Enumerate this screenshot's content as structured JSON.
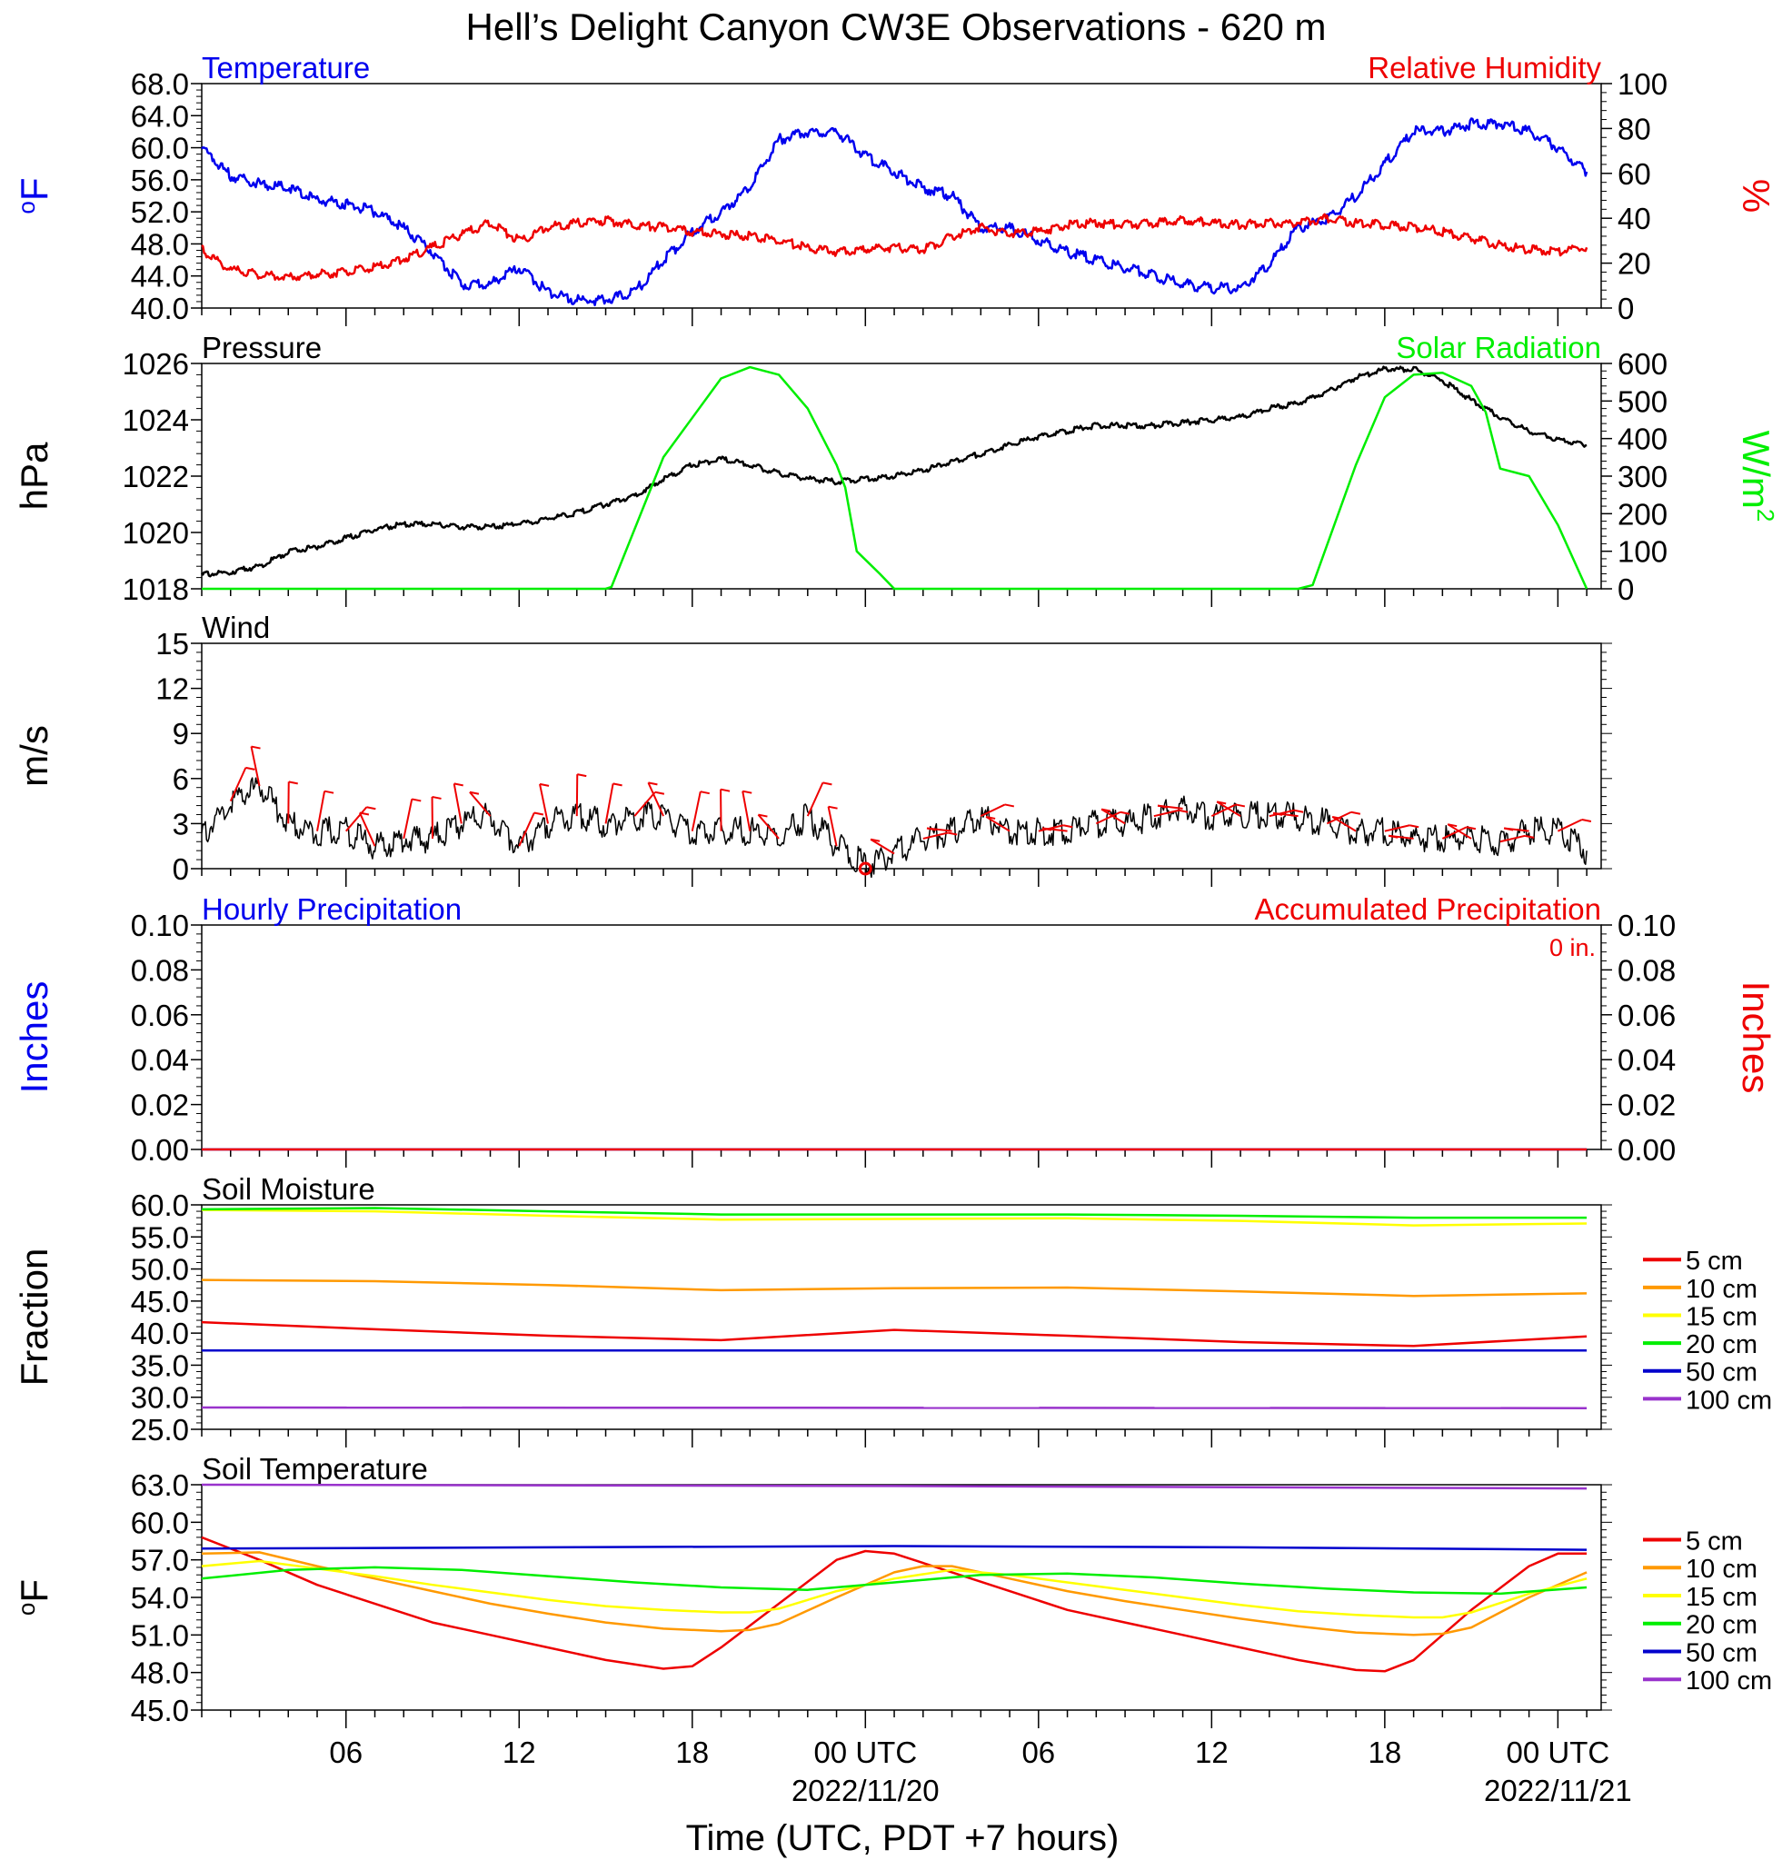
{
  "title": "Hell’s Delight Canyon CW3E Observations - 620 m",
  "colors": {
    "temperature": "#0000ee",
    "humidity": "#ee0000",
    "pressure": "#000000",
    "solar": "#00ee00",
    "wind": "#000000",
    "barb": "#ee0000",
    "precip_hourly": "#0000ee",
    "precip_accum": "#ee0000",
    "depth_colors": {
      "5 cm": "#ee0000",
      "10 cm": "#ff9900",
      "15 cm": "#ffff00",
      "20 cm": "#00ee00",
      "50 cm": "#0000cc",
      "100 cm": "#9933cc"
    }
  },
  "x_axis": {
    "label": "Time (UTC, PDT +7 hours)",
    "hours_range": [
      0,
      48.5
    ],
    "ticks": [
      {
        "hour": 5,
        "label": "06",
        "date": ""
      },
      {
        "hour": 11,
        "label": "12",
        "date": ""
      },
      {
        "hour": 17,
        "label": "18",
        "date": ""
      },
      {
        "hour": 23,
        "label": "00 UTC",
        "date": "2022/11/20"
      },
      {
        "hour": 29,
        "label": "06",
        "date": ""
      },
      {
        "hour": 35,
        "label": "12",
        "date": ""
      },
      {
        "hour": 41,
        "label": "18",
        "date": ""
      },
      {
        "hour": 47,
        "label": "00 UTC",
        "date": "2022/11/21"
      }
    ]
  },
  "chart_data": [
    {
      "id": "temp_rh",
      "type": "line",
      "title_left": "Temperature",
      "title_right": "Relative Humidity",
      "left_label": "oF",
      "right_label": "%",
      "left_ylim": [
        40,
        68
      ],
      "left_ticks": [
        "40.0",
        "44.0",
        "48.0",
        "52.0",
        "56.0",
        "60.0",
        "64.0",
        "68.0"
      ],
      "right_ylim": [
        0,
        100
      ],
      "right_ticks": [
        "0",
        "20",
        "40",
        "60",
        "80",
        "100"
      ],
      "series": [
        {
          "name": "Temperature",
          "axis": "left",
          "x": [
            0,
            1,
            2,
            3,
            4,
            5,
            6,
            7,
            8,
            9,
            10,
            11,
            12,
            13,
            14,
            15,
            16,
            17,
            18,
            19,
            20,
            21,
            22,
            23,
            24,
            25,
            26,
            27,
            28,
            29,
            30,
            31,
            32,
            33,
            34,
            35,
            36,
            37,
            38,
            39,
            40,
            41,
            42,
            43,
            44,
            45,
            46,
            47,
            48
          ],
          "y": [
            60,
            56.5,
            55.5,
            55,
            53.5,
            53,
            52,
            50,
            47,
            43,
            43,
            45,
            42,
            41,
            41,
            42,
            46,
            49.5,
            52,
            55,
            61,
            62,
            62,
            59,
            57,
            55,
            54,
            50,
            50,
            48.5,
            47,
            46,
            45,
            44,
            43,
            42.5,
            42.5,
            45.5,
            50,
            51,
            54,
            58,
            62,
            62,
            63,
            63,
            62,
            60,
            57
          ]
        },
        {
          "name": "Relative Humidity",
          "axis": "right",
          "x": [
            0,
            1,
            2,
            3,
            4,
            5,
            6,
            7,
            8,
            9,
            10,
            11,
            12,
            13,
            14,
            15,
            16,
            17,
            18,
            19,
            20,
            21,
            22,
            23,
            24,
            25,
            26,
            27,
            28,
            29,
            30,
            31,
            32,
            33,
            34,
            35,
            36,
            37,
            38,
            39,
            40,
            41,
            42,
            43,
            44,
            45,
            46,
            47,
            48
          ],
          "y": [
            26,
            17,
            15,
            14,
            15,
            16,
            18,
            22,
            27,
            33,
            38,
            30,
            36,
            38,
            39,
            37,
            36,
            34,
            33,
            32,
            30,
            27,
            25,
            26,
            27,
            26,
            32,
            36,
            33,
            34,
            37,
            38,
            37,
            38,
            39,
            38,
            37,
            38,
            38,
            40,
            38,
            37,
            36,
            34,
            31,
            28,
            26,
            25,
            27
          ]
        }
      ]
    },
    {
      "id": "pressure_solar",
      "type": "line",
      "title_left": "Pressure",
      "title_right": "Solar Radiation",
      "left_label": "hPa",
      "right_label": "W/m",
      "right_label_sup": "2",
      "left_ylim": [
        1018,
        1026
      ],
      "left_ticks": [
        "1018",
        "1020",
        "1022",
        "1024",
        "1026"
      ],
      "right_ylim": [
        0,
        600
      ],
      "right_ticks": [
        "0",
        "100",
        "200",
        "300",
        "400",
        "500",
        "600"
      ],
      "series": [
        {
          "name": "Pressure",
          "axis": "left",
          "x": [
            0,
            1,
            2,
            3,
            4,
            5,
            6,
            7,
            8,
            9,
            10,
            11,
            12,
            13,
            14,
            15,
            16,
            17,
            18,
            19,
            20,
            21,
            22,
            23,
            24,
            25,
            26,
            27,
            28,
            29,
            30,
            31,
            32,
            33,
            34,
            35,
            36,
            37,
            38,
            39,
            40,
            41,
            42,
            43,
            44,
            45,
            46,
            47,
            48
          ],
          "y": [
            1018.5,
            1018.6,
            1018.8,
            1019.3,
            1019.5,
            1019.8,
            1020.1,
            1020.3,
            1020.3,
            1020.2,
            1020.2,
            1020.3,
            1020.5,
            1020.7,
            1021.0,
            1021.3,
            1021.9,
            1022.4,
            1022.6,
            1022.4,
            1022.1,
            1021.9,
            1021.8,
            1021.9,
            1022.0,
            1022.2,
            1022.5,
            1022.8,
            1023.1,
            1023.4,
            1023.6,
            1023.8,
            1023.8,
            1023.8,
            1023.9,
            1024.0,
            1024.1,
            1024.4,
            1024.6,
            1025.0,
            1025.5,
            1025.8,
            1025.8,
            1025.4,
            1024.7,
            1024.1,
            1023.6,
            1023.3,
            1023.1
          ]
        },
        {
          "name": "Solar Radiation",
          "axis": "right",
          "x": [
            0,
            14,
            14.2,
            16,
            18,
            19,
            20,
            21,
            22,
            22.3,
            22.7,
            23.5,
            24,
            29,
            38,
            38.5,
            40,
            41,
            42,
            43,
            44,
            44.5,
            45,
            46,
            47,
            48
          ],
          "y": [
            0,
            0,
            5,
            350,
            560,
            590,
            570,
            480,
            330,
            270,
            100,
            40,
            0,
            0,
            0,
            10,
            330,
            510,
            570,
            575,
            540,
            470,
            320,
            300,
            170,
            0
          ]
        }
      ]
    },
    {
      "id": "wind",
      "type": "line",
      "title_left": "Wind",
      "left_label": "m/s",
      "left_ylim": [
        0,
        15
      ],
      "left_ticks": [
        "0",
        "3",
        "6",
        "9",
        "12",
        "15"
      ],
      "series": [
        {
          "name": "Wind",
          "axis": "left",
          "x": [
            0,
            1,
            2,
            3,
            4,
            5,
            6,
            7,
            8,
            9,
            10,
            11,
            12,
            13,
            14,
            15,
            16,
            17,
            18,
            19,
            20,
            21,
            22,
            23,
            24,
            25,
            26,
            27,
            28,
            29,
            30,
            31,
            32,
            33,
            34,
            35,
            36,
            37,
            38,
            39,
            40,
            41,
            42,
            43,
            44,
            45,
            46,
            47,
            48
          ],
          "y": [
            2,
            4.5,
            5.5,
            3,
            2.5,
            2.5,
            1.5,
            2,
            2,
            3,
            3.5,
            1.5,
            3,
            3.5,
            3,
            3.5,
            3.5,
            2.5,
            2.5,
            2.5,
            2,
            3.5,
            1.5,
            0.2,
            1,
            2,
            2.5,
            3.5,
            2.5,
            2.5,
            2.5,
            3,
            3,
            3.5,
            4,
            3.5,
            3.5,
            3.5,
            3.5,
            3,
            2.5,
            2.5,
            2,
            2,
            2,
            1.8,
            2.5,
            2.5,
            1.2
          ]
        }
      ]
    },
    {
      "id": "precip",
      "type": "line",
      "title_left": "Hourly Precipitation",
      "title_right": "Accumulated Precipitation",
      "annotation": "0 in.",
      "left_label": "Inches",
      "right_label": "Inches",
      "left_ylim": [
        0,
        0.1
      ],
      "left_ticks": [
        "0.00",
        "0.02",
        "0.04",
        "0.06",
        "0.08",
        "0.10"
      ],
      "right_ylim": [
        0,
        0.1
      ],
      "right_ticks": [
        "0.00",
        "0.02",
        "0.04",
        "0.06",
        "0.08",
        "0.10"
      ],
      "series": [
        {
          "name": "Hourly Precipitation",
          "axis": "left",
          "x": [
            0,
            48
          ],
          "y": [
            0,
            0
          ]
        },
        {
          "name": "Accumulated Precipitation",
          "axis": "right",
          "x": [
            0,
            48
          ],
          "y": [
            0,
            0
          ]
        }
      ]
    },
    {
      "id": "soil_moisture",
      "type": "line",
      "title_left": "Soil Moisture",
      "left_label": "Fraction",
      "left_ylim": [
        25,
        60
      ],
      "left_ticks": [
        "25.0",
        "30.0",
        "35.0",
        "40.0",
        "45.0",
        "50.0",
        "55.0",
        "60.0"
      ],
      "legend": [
        "5 cm",
        "10 cm",
        "15 cm",
        "20 cm",
        "50 cm",
        "100 cm"
      ],
      "series": [
        {
          "name": "5 cm",
          "axis": "left",
          "x": [
            0,
            6,
            12,
            18,
            24,
            30,
            36,
            42,
            48
          ],
          "y": [
            41.7,
            40.6,
            39.6,
            38.9,
            40.5,
            39.6,
            38.6,
            38.0,
            39.5
          ]
        },
        {
          "name": "10 cm",
          "axis": "left",
          "x": [
            0,
            6,
            12,
            18,
            24,
            30,
            36,
            42,
            48
          ],
          "y": [
            48.3,
            48.1,
            47.5,
            46.7,
            47.0,
            47.1,
            46.5,
            45.8,
            46.2
          ]
        },
        {
          "name": "15 cm",
          "axis": "left",
          "x": [
            0,
            6,
            12,
            18,
            24,
            30,
            36,
            42,
            48
          ],
          "y": [
            59.2,
            59.0,
            58.3,
            57.7,
            57.8,
            57.9,
            57.5,
            56.8,
            57.1
          ]
        },
        {
          "name": "20 cm",
          "axis": "left",
          "x": [
            0,
            6,
            12,
            18,
            24,
            30,
            36,
            42,
            48
          ],
          "y": [
            59.3,
            59.5,
            59.0,
            58.5,
            58.5,
            58.5,
            58.3,
            58.0,
            58.0
          ]
        },
        {
          "name": "50 cm",
          "axis": "left",
          "x": [
            0,
            48
          ],
          "y": [
            37.3,
            37.3
          ]
        },
        {
          "name": "100 cm",
          "axis": "left",
          "x": [
            0,
            48
          ],
          "y": [
            28.4,
            28.3
          ]
        }
      ]
    },
    {
      "id": "soil_temperature",
      "type": "line",
      "title_left": "Soil Temperature",
      "left_label": "oF",
      "left_ylim": [
        45,
        63
      ],
      "left_ticks": [
        "45.0",
        "48.0",
        "51.0",
        "54.0",
        "57.0",
        "60.0",
        "63.0"
      ],
      "legend": [
        "5 cm",
        "10 cm",
        "15 cm",
        "20 cm",
        "50 cm",
        "100 cm"
      ],
      "series": [
        {
          "name": "5 cm",
          "axis": "left",
          "x": [
            0,
            2,
            4,
            6,
            8,
            10,
            12,
            14,
            16,
            17,
            18,
            20,
            22,
            23,
            24,
            26,
            28,
            30,
            32,
            34,
            36,
            38,
            40,
            41,
            42,
            44,
            46,
            47,
            48
          ],
          "y": [
            58.8,
            57,
            55,
            53.5,
            52,
            51,
            50,
            49,
            48.3,
            48.5,
            50,
            53.5,
            57,
            57.7,
            57.5,
            56,
            54.5,
            53,
            52,
            51,
            50,
            49,
            48.2,
            48.1,
            49,
            53,
            56.5,
            57.5,
            57.5
          ]
        },
        {
          "name": "10 cm",
          "axis": "left",
          "x": [
            0,
            2,
            4,
            6,
            8,
            10,
            12,
            14,
            16,
            18,
            19,
            20,
            22,
            24,
            25,
            26,
            28,
            30,
            32,
            34,
            36,
            38,
            40,
            42,
            43,
            44,
            46,
            48
          ],
          "y": [
            57.5,
            57.6,
            56.5,
            55.5,
            54.5,
            53.5,
            52.7,
            52,
            51.5,
            51.3,
            51.4,
            51.9,
            54,
            56,
            56.5,
            56.5,
            55.5,
            54.5,
            53.7,
            53,
            52.3,
            51.7,
            51.2,
            51,
            51.1,
            51.6,
            54,
            56
          ]
        },
        {
          "name": "15 cm",
          "axis": "left",
          "x": [
            0,
            2,
            4,
            6,
            8,
            10,
            12,
            14,
            16,
            18,
            19,
            20,
            22,
            24,
            26,
            28,
            30,
            32,
            34,
            36,
            38,
            40,
            42,
            43,
            44,
            46,
            48
          ],
          "y": [
            56.5,
            56.9,
            56.3,
            55.7,
            55,
            54.4,
            53.8,
            53.3,
            53,
            52.8,
            52.8,
            53.1,
            54.5,
            55.5,
            56.2,
            55.8,
            55.2,
            54.6,
            54,
            53.4,
            52.9,
            52.6,
            52.4,
            52.4,
            52.8,
            54.3,
            55.5
          ]
        },
        {
          "name": "20 cm",
          "axis": "left",
          "x": [
            0,
            3,
            6,
            9,
            12,
            15,
            18,
            21,
            24,
            27,
            30,
            33,
            36,
            39,
            42,
            45,
            48
          ],
          "y": [
            55.5,
            56.2,
            56.4,
            56.2,
            55.7,
            55.2,
            54.8,
            54.6,
            55.2,
            55.8,
            55.9,
            55.6,
            55.1,
            54.7,
            54.4,
            54.3,
            54.8
          ]
        },
        {
          "name": "50 cm",
          "axis": "left",
          "x": [
            0,
            12,
            24,
            36,
            48
          ],
          "y": [
            57.9,
            58,
            58.1,
            58,
            57.8
          ]
        },
        {
          "name": "100 cm",
          "axis": "left",
          "x": [
            0,
            24,
            48
          ],
          "y": [
            63,
            62.9,
            62.7
          ]
        }
      ]
    }
  ]
}
